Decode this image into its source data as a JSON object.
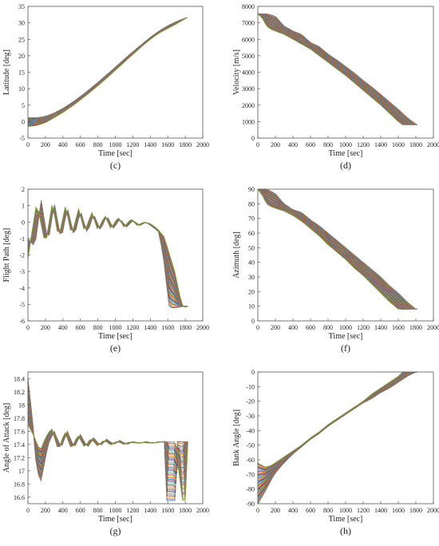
{
  "chart_data": [
    {
      "type": "line",
      "panel_label": "(c)",
      "xlabel": "Time [sec]",
      "ylabel": "Latitude [deg]",
      "xlim": [
        0,
        2000
      ],
      "ylim": [
        -5,
        35
      ],
      "xticks": [
        "0",
        "200",
        "400",
        "600",
        "800",
        "1000",
        "1200",
        "1400",
        "1600",
        "1800",
        "2000"
      ],
      "yticks": [
        "-5",
        "0",
        "5",
        "10",
        "15",
        "20",
        "25",
        "30",
        "35"
      ],
      "grid": false,
      "series_count": 40,
      "series_ranges": [
        {
          "name": "",
          "x": [
            0,
            100,
            200,
            300,
            400,
            500,
            600,
            700,
            800,
            900,
            1000,
            1100,
            1200,
            1300,
            1400,
            1500,
            1600,
            1700,
            1800,
            1820
          ],
          "y": [
            1.2,
            1.2,
            1.6,
            2.6,
            4.0,
            5.7,
            7.6,
            9.7,
            11.9,
            14.2,
            16.5,
            18.9,
            21.2,
            23.4,
            25.6,
            27.5,
            29.1,
            30.4,
            31.4,
            31.6
          ]
        },
        {
          "name": "",
          "x": [
            0,
            100,
            200,
            300,
            400,
            500,
            600,
            700,
            800,
            900,
            1000,
            1100,
            1200,
            1300,
            1400,
            1500,
            1600,
            1700,
            1800,
            1820
          ],
          "y": [
            -1.5,
            -1.2,
            -0.3,
            1.2,
            2.8,
            4.6,
            6.6,
            8.7,
            10.9,
            13.2,
            15.6,
            18.0,
            20.4,
            22.8,
            25.0,
            26.9,
            28.3,
            29.7,
            31.3,
            31.6
          ]
        }
      ]
    },
    {
      "type": "line",
      "panel_label": "(d)",
      "xlabel": "Time [sec]",
      "ylabel": "Velocity [m/s]",
      "xlim": [
        0,
        2000
      ],
      "ylim": [
        0,
        8000
      ],
      "xticks": [
        "0",
        "200",
        "400",
        "600",
        "800",
        "1000",
        "1200",
        "1400",
        "1600",
        "1800",
        "2000"
      ],
      "yticks": [
        "0",
        "1000",
        "2000",
        "3000",
        "4000",
        "5000",
        "6000",
        "7000",
        "8000"
      ],
      "grid": false,
      "series_count": 40,
      "series_ranges": [
        {
          "name": "",
          "x": [
            0,
            100,
            200,
            300,
            400,
            500,
            600,
            700,
            800,
            900,
            1000,
            1100,
            1200,
            1300,
            1400,
            1500,
            1600,
            1700,
            1800,
            1820
          ],
          "y": [
            7550,
            7550,
            7400,
            6800,
            6500,
            6300,
            5800,
            5550,
            5100,
            4750,
            4350,
            3950,
            3500,
            3100,
            2650,
            2200,
            1750,
            1250,
            850,
            800
          ]
        },
        {
          "name": "",
          "x": [
            0,
            50,
            100,
            150,
            200,
            300,
            400,
            500,
            600,
            700,
            800,
            900,
            1000,
            1100,
            1200,
            1300,
            1400,
            1500,
            1600,
            1650
          ],
          "y": [
            7550,
            7300,
            6800,
            6600,
            6500,
            6300,
            6000,
            5700,
            5400,
            5000,
            4600,
            4200,
            3800,
            3350,
            2900,
            2450,
            2000,
            1500,
            1000,
            800
          ]
        }
      ]
    },
    {
      "type": "line",
      "panel_label": "(e)",
      "xlabel": "Time [sec]",
      "ylabel": "Flight Path [deg]",
      "xlim": [
        0,
        2000
      ],
      "ylim": [
        -6,
        2
      ],
      "xticks": [
        "0",
        "200",
        "400",
        "600",
        "800",
        "1000",
        "1200",
        "1400",
        "1600",
        "1800",
        "2000"
      ],
      "yticks": [
        "-6",
        "-5",
        "-4",
        "-3",
        "-2",
        "-1",
        "0",
        "1",
        "2"
      ],
      "grid": false,
      "series_count": 40,
      "series_ranges": [
        {
          "name": "",
          "x": [
            0,
            80,
            150,
            230,
            300,
            380,
            450,
            530,
            600,
            680,
            750,
            830,
            900,
            980,
            1050,
            1130,
            1200,
            1280,
            1350,
            1430,
            1500,
            1560,
            1600,
            1620,
            1680,
            1800,
            1830
          ],
          "y": [
            -1.0,
            -1.5,
            1.4,
            -1.3,
            1.2,
            -1.1,
            0.9,
            -0.9,
            0.7,
            -0.7,
            0.5,
            -0.5,
            0.4,
            -0.4,
            0.2,
            -0.3,
            0.1,
            -0.2,
            0,
            -0.3,
            -0.6,
            -2.5,
            -4.5,
            -5.2,
            -5.2,
            -5.1,
            -5.1
          ]
        },
        {
          "name": "",
          "x": [
            0,
            100,
            200,
            280,
            350,
            430,
            500,
            580,
            650,
            730,
            800,
            880,
            950,
            1030,
            1100,
            1180,
            1250,
            1330,
            1400,
            1480,
            1560,
            1680,
            1750,
            1780,
            1830
          ],
          "y": [
            -2.2,
            1.2,
            -1.4,
            1.2,
            -1.0,
            1.0,
            -0.8,
            0.8,
            -0.6,
            0.6,
            -0.5,
            0.4,
            -0.4,
            0.3,
            -0.3,
            0.2,
            -0.2,
            0,
            -0.1,
            -0.4,
            -0.9,
            -3.0,
            -4.8,
            -5.2,
            -5.1
          ]
        }
      ]
    },
    {
      "type": "line",
      "panel_label": "(f)",
      "xlabel": "Time [sec]",
      "ylabel": "Azimuth [deg]",
      "xlim": [
        0,
        2000
      ],
      "ylim": [
        0,
        90
      ],
      "xticks": [
        "0",
        "200",
        "400",
        "600",
        "800",
        "1000",
        "1200",
        "1400",
        "1600",
        "1800",
        "2000"
      ],
      "yticks": [
        "0",
        "10",
        "20",
        "30",
        "40",
        "50",
        "60",
        "70",
        "80",
        "90"
      ],
      "grid": false,
      "series_count": 40,
      "series_ranges": [
        {
          "name": "",
          "x": [
            0,
            100,
            200,
            300,
            400,
            500,
            600,
            700,
            800,
            900,
            1000,
            1100,
            1200,
            1300,
            1400,
            1500,
            1600,
            1700,
            1800,
            1820
          ],
          "y": [
            90,
            90,
            87,
            80,
            76,
            74,
            69,
            65,
            60,
            55,
            50,
            45,
            40,
            35,
            30,
            24,
            19,
            13,
            8,
            8
          ]
        },
        {
          "name": "",
          "x": [
            0,
            50,
            100,
            150,
            200,
            300,
            400,
            500,
            600,
            700,
            800,
            900,
            1000,
            1100,
            1200,
            1300,
            1400,
            1500,
            1600,
            1650
          ],
          "y": [
            90,
            86,
            80,
            78,
            77,
            75,
            72,
            68,
            63,
            58,
            52,
            47,
            42,
            36,
            31,
            25,
            19,
            13,
            8,
            8
          ]
        }
      ]
    },
    {
      "type": "line",
      "panel_label": "(g)",
      "xlabel": "Time [sec]",
      "ylabel": "Angle of Attack [deg]",
      "xlim": [
        0,
        2000
      ],
      "ylim": [
        16.5,
        18.5
      ],
      "xticks": [
        "0",
        "200",
        "400",
        "600",
        "800",
        "1000",
        "1200",
        "1400",
        "1600",
        "1800",
        "2000"
      ],
      "yticks": [
        "16.6",
        "16.8",
        "17",
        "17.2",
        "17.4",
        "17.6",
        "17.8",
        "18",
        "18.2",
        "18.4"
      ],
      "grid": false,
      "series_count": 40,
      "series_ranges": [
        {
          "name": "",
          "x": [
            0,
            50,
            100,
            150,
            230,
            300,
            380,
            450,
            530,
            600,
            680,
            750,
            830,
            900,
            980,
            1050,
            1130,
            1200,
            1280,
            1350,
            1430,
            1500,
            1560,
            1580,
            1620,
            1680,
            1700,
            1720,
            1800
          ],
          "y": [
            18.4,
            17.8,
            17.0,
            16.85,
            17.4,
            17.6,
            17.35,
            17.6,
            17.35,
            17.55,
            17.35,
            17.5,
            17.38,
            17.48,
            17.4,
            17.46,
            17.4,
            17.44,
            17.42,
            17.44,
            17.42,
            17.44,
            17.44,
            16.55,
            16.55,
            16.55,
            17.44,
            17.44,
            17.44
          ]
        },
        {
          "name": "",
          "x": [
            0,
            60,
            140,
            200,
            270,
            350,
            420,
            500,
            570,
            650,
            720,
            800,
            870,
            950,
            1020,
            1100,
            1170,
            1250,
            1320,
            1400,
            1480,
            1560,
            1700,
            1760,
            1800,
            1830
          ],
          "y": [
            17.7,
            17.55,
            17.3,
            17.5,
            17.65,
            17.3,
            17.6,
            17.32,
            17.55,
            17.35,
            17.5,
            17.37,
            17.47,
            17.39,
            17.45,
            17.4,
            17.44,
            17.42,
            17.43,
            17.42,
            17.43,
            17.44,
            17.44,
            16.55,
            16.55,
            17.44
          ]
        }
      ]
    },
    {
      "type": "line",
      "panel_label": "(h)",
      "xlabel": "Time [sec]",
      "ylabel": "Bank Angle [deg]",
      "xlim": [
        0,
        2000
      ],
      "ylim": [
        -90,
        0
      ],
      "xticks": [
        "0",
        "200",
        "400",
        "600",
        "800",
        "1000",
        "1200",
        "1400",
        "1600",
        "1800",
        "2000"
      ],
      "yticks": [
        "-90",
        "-80",
        "-70",
        "-60",
        "-50",
        "-40",
        "-30",
        "-20",
        "-10",
        "0"
      ],
      "grid": false,
      "series_count": 40,
      "series_ranges": [
        {
          "name": "",
          "x": [
            0,
            80,
            150,
            200,
            300,
            400,
            500,
            600,
            700,
            800,
            900,
            1000,
            1100,
            1200,
            1300,
            1400,
            1500,
            1600,
            1700,
            1800,
            1820
          ],
          "y": [
            -90,
            -82,
            -74,
            -69,
            -62,
            -56,
            -51,
            -46,
            -42,
            -37,
            -33,
            -29,
            -25,
            -21,
            -18,
            -14,
            -11,
            -7,
            -3,
            0,
            0
          ]
        },
        {
          "name": "",
          "x": [
            0,
            80,
            150,
            200,
            300,
            400,
            500,
            600,
            700,
            800,
            900,
            1000,
            1100,
            1200,
            1300,
            1400,
            1500,
            1600,
            1650
          ],
          "y": [
            -62,
            -65,
            -64,
            -62,
            -58,
            -54,
            -50,
            -45,
            -41,
            -36,
            -32,
            -28,
            -24,
            -20,
            -15,
            -11,
            -7,
            -3,
            0
          ]
        }
      ]
    }
  ]
}
